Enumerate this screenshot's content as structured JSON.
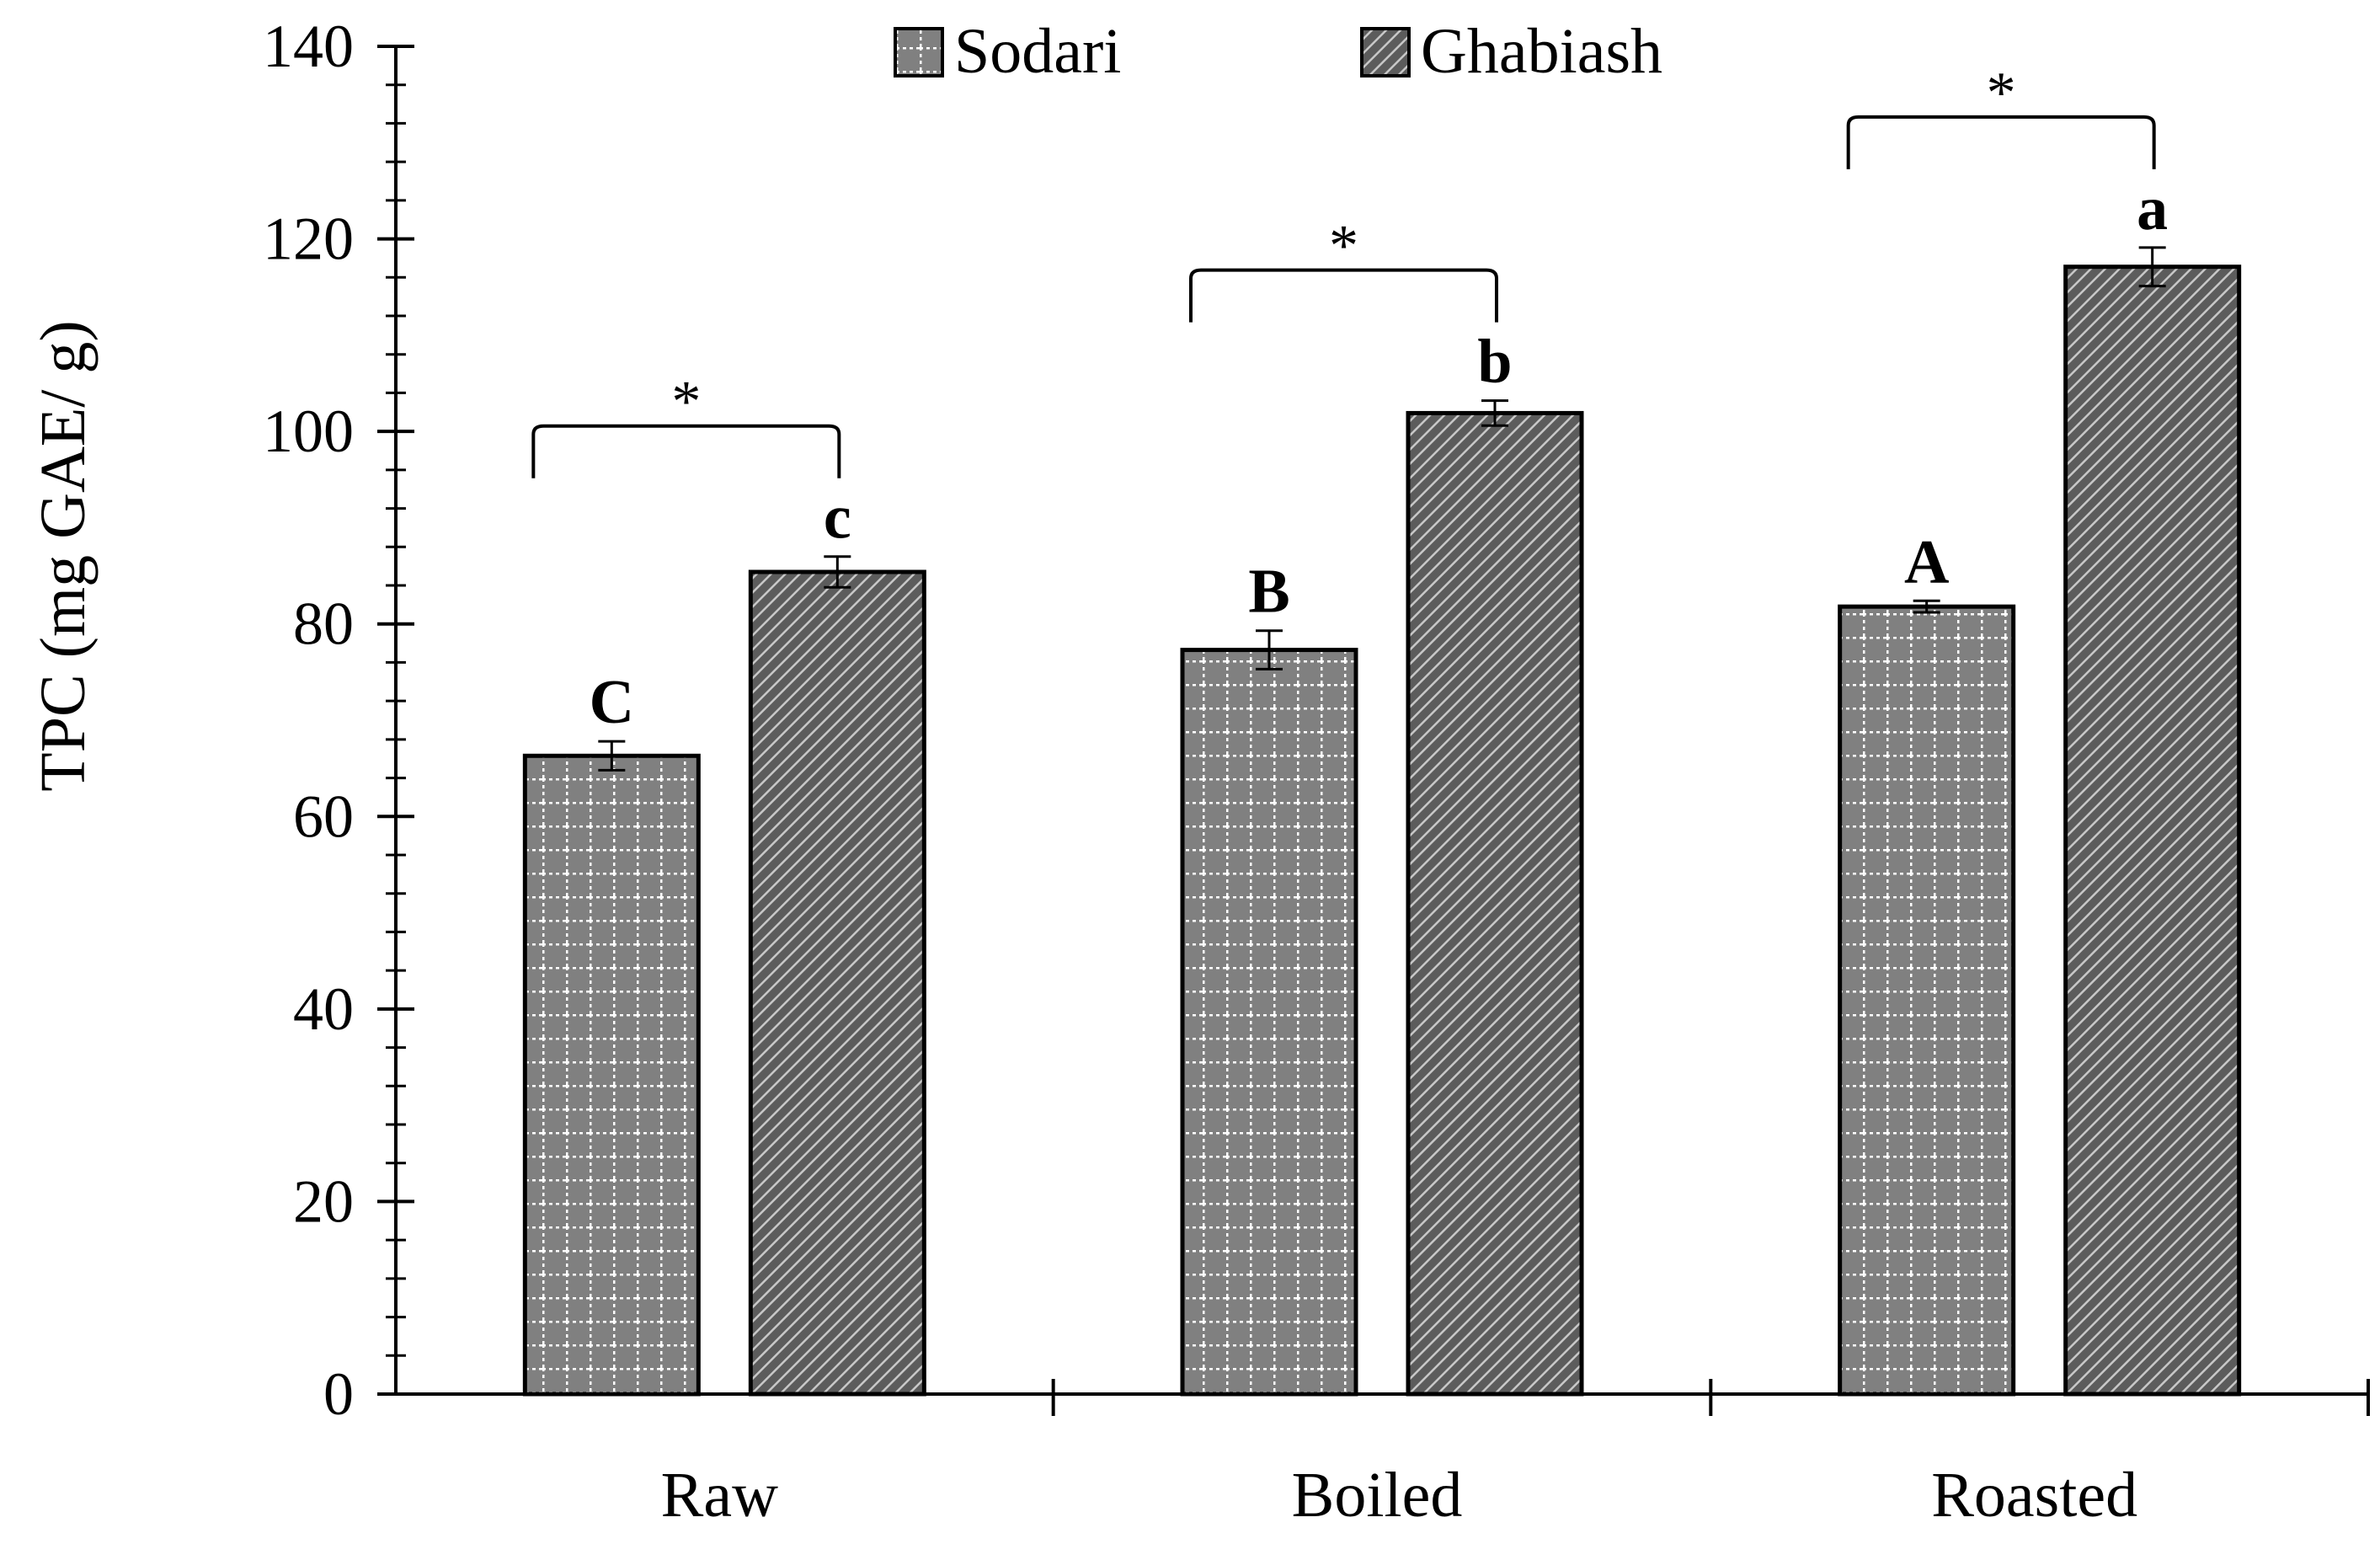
{
  "chart_data": {
    "type": "bar",
    "title": "",
    "xlabel": "",
    "ylabel": "TPC (mg GAE/ g)",
    "ylim": [
      0,
      140
    ],
    "ytick_step": 20,
    "yticks": [
      "0",
      "20",
      "40",
      "60",
      "80",
      "100",
      "120",
      "140"
    ],
    "categories": [
      "Raw",
      "Boiled",
      "Roasted"
    ],
    "series": [
      {
        "name": "Sodari",
        "values": [
          66.3,
          77.3,
          81.8
        ],
        "errors": [
          1.5,
          2.0,
          0.6
        ],
        "letters": [
          "C",
          "B",
          "A"
        ],
        "pattern": "grid",
        "color": "#7f7f7f"
      },
      {
        "name": "Ghabiash",
        "values": [
          85.4,
          101.9,
          117.1
        ],
        "errors": [
          1.6,
          1.3,
          2.0
        ],
        "letters": [
          "c",
          "b",
          "a"
        ],
        "pattern": "diagonal",
        "color": "#5a5a5a"
      }
    ],
    "significance": [
      "*",
      "*",
      "*"
    ],
    "legend_position": "top-center",
    "grid": false
  }
}
